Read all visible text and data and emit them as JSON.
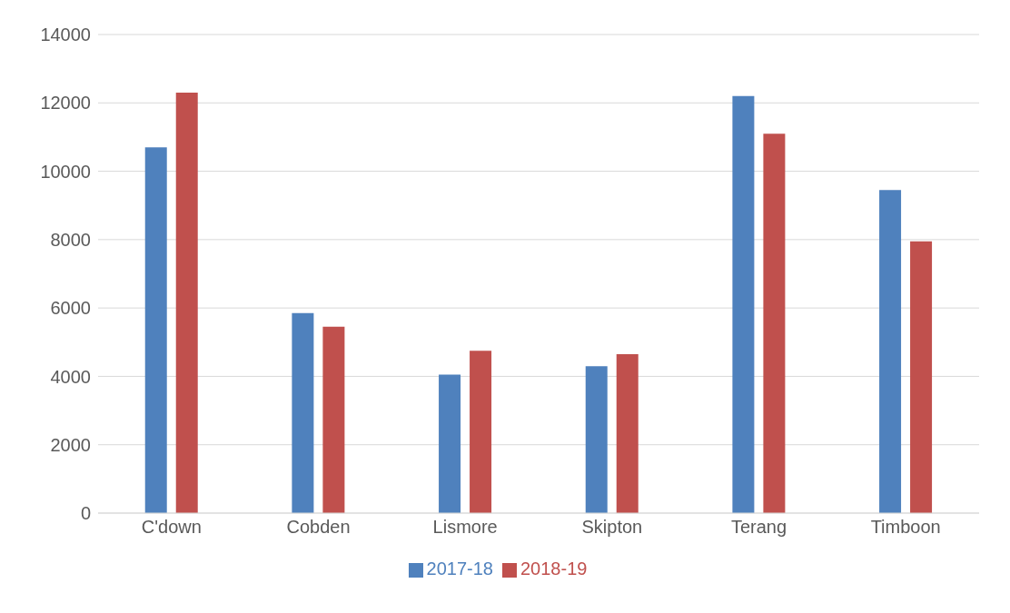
{
  "chart_data": {
    "type": "bar",
    "categories": [
      "C'down",
      "Cobden",
      "Lismore",
      "Skipton",
      "Terang",
      "Timboon"
    ],
    "series": [
      {
        "name": "2017-18",
        "color": "#4f81bd",
        "values": [
          10700,
          5850,
          4050,
          4300,
          12200,
          9450
        ]
      },
      {
        "name": "2018-19",
        "color": "#c0504d",
        "values": [
          12300,
          5450,
          4750,
          4650,
          11100,
          7950
        ]
      }
    ],
    "ylim": [
      0,
      14000
    ],
    "yticks": [
      0,
      2000,
      4000,
      6000,
      8000,
      10000,
      12000,
      14000
    ],
    "grid": "y",
    "legend": "bottom"
  }
}
